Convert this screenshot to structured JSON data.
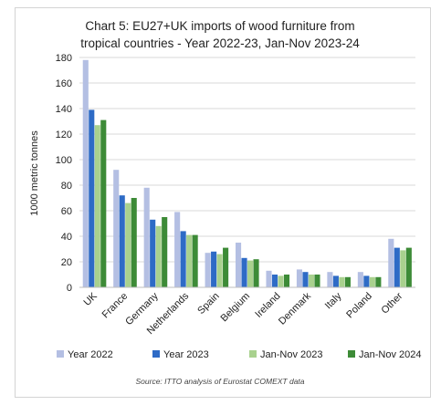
{
  "chart_data": {
    "type": "bar",
    "title": "Chart 5: EU27+UK imports of wood furniture from tropical countries - Year 2022-23, Jan-Nov 2023-24",
    "title_lines": [
      "Chart 5: EU27+UK imports of wood furniture from",
      "tropical countries - Year 2022-23, Jan-Nov 2023-24"
    ],
    "xlabel": "",
    "ylabel": "1000 metric tonnes",
    "ylim": [
      0,
      180
    ],
    "yticks": [
      0,
      20,
      40,
      60,
      80,
      100,
      120,
      140,
      160,
      180
    ],
    "grid": true,
    "legend_position": "bottom",
    "categories": [
      "UK",
      "France",
      "Germany",
      "Netherlands",
      "Spain",
      "Belgium",
      "Ireland",
      "Denmark",
      "Italy",
      "Poland",
      "Other"
    ],
    "series": [
      {
        "name": "Year 2022",
        "color": "#b4bfe3",
        "values": [
          178,
          92,
          78,
          59,
          27,
          35,
          13,
          14,
          12,
          12,
          38
        ]
      },
      {
        "name": "Year 2023",
        "color": "#2e6bc6",
        "values": [
          139,
          72,
          53,
          44,
          28,
          23,
          10,
          12,
          9,
          9,
          31
        ]
      },
      {
        "name": "Jan-Nov 2023",
        "color": "#a9d18e",
        "values": [
          127,
          66,
          48,
          41,
          26,
          21,
          9,
          10,
          8,
          8,
          29
        ]
      },
      {
        "name": "Jan-Nov 2024",
        "color": "#3d8b37",
        "values": [
          131,
          70,
          55,
          41,
          31,
          22,
          10,
          10,
          8,
          8,
          31
        ]
      }
    ],
    "source": "Source: ITTO analysis of Eurostat COMEXT data"
  },
  "colors": {
    "gridline": "#d9d9d9",
    "axis": "#bfbfbf",
    "frame": "#d4d4d4"
  }
}
